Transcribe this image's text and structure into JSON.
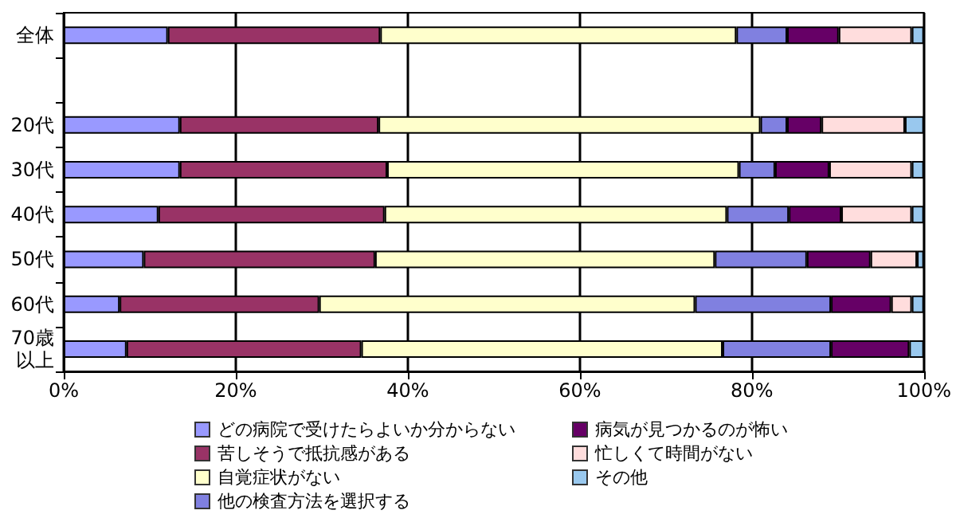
{
  "chart_data": {
    "type": "bar",
    "orientation": "horizontal",
    "stacked": true,
    "categories": [
      "全体",
      null,
      "20代",
      "30代",
      "40代",
      "50代",
      "60代",
      "70歳以上"
    ],
    "series": [
      {
        "name": "どの病院で受けたらよいか分からない",
        "color": "#9999ff",
        "values": [
          12.1,
          null,
          13.5,
          13.5,
          11.0,
          9.3,
          6.5,
          7.3
        ]
      },
      {
        "name": "苦しそうで抵抗感がある",
        "color": "#993366",
        "values": [
          24.7,
          null,
          23.1,
          24.1,
          26.3,
          26.9,
          23.2,
          27.3
        ]
      },
      {
        "name": "自覚症状がない",
        "color": "#ffffcc",
        "values": [
          41.4,
          null,
          44.4,
          40.9,
          39.8,
          39.5,
          43.7,
          42.0
        ]
      },
      {
        "name": "他の検査方法を選択する",
        "color": "#8080e0",
        "values": [
          5.9,
          null,
          3.1,
          4.2,
          7.2,
          10.7,
          15.8,
          12.6
        ]
      },
      {
        "name": "病気が見つかるのが怖い",
        "color": "#660066",
        "values": [
          6.0,
          null,
          4.0,
          6.3,
          6.1,
          7.4,
          7.0,
          9.1
        ]
      },
      {
        "name": "忙しくて時間がない",
        "color": "#ffdddd",
        "values": [
          8.5,
          null,
          9.7,
          9.6,
          8.2,
          5.4,
          2.4,
          null
        ]
      },
      {
        "name": "その他",
        "color": "#99c8ee",
        "values": [
          1.4,
          null,
          2.2,
          1.4,
          1.4,
          0.8,
          1.4,
          1.7
        ]
      }
    ],
    "xlim": [
      0,
      100
    ],
    "xticks": [
      {
        "value": 0,
        "label": "0%"
      },
      {
        "value": 20,
        "label": "20%"
      },
      {
        "value": 40,
        "label": "40%"
      },
      {
        "value": 60,
        "label": "60%"
      },
      {
        "value": 80,
        "label": "80%"
      },
      {
        "value": 100,
        "label": "100%"
      }
    ],
    "grid": "x",
    "legend": "bottom"
  }
}
